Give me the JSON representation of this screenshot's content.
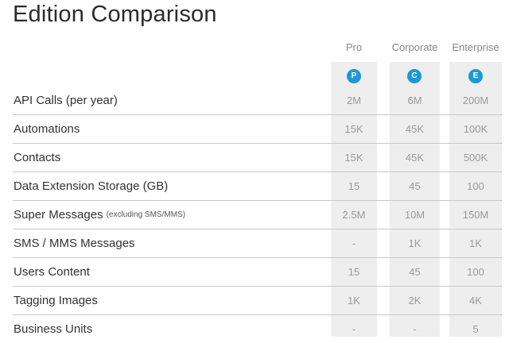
{
  "title": "Edition Comparison",
  "editions": [
    {
      "name": "Pro",
      "badge": "P"
    },
    {
      "name": "Corporate",
      "badge": "C"
    },
    {
      "name": "Enterprise",
      "badge": "E"
    }
  ],
  "badge_color": "#1a9ad6",
  "rows": [
    {
      "label": "API Calls (per year)",
      "note": "",
      "values": [
        "2M",
        "6M",
        "200M"
      ]
    },
    {
      "label": "Automations",
      "note": "",
      "values": [
        "15K",
        "45K",
        "100K"
      ]
    },
    {
      "label": "Contacts",
      "note": "",
      "values": [
        "15K",
        "45K",
        "500K"
      ]
    },
    {
      "label": "Data Extension Storage (GB)",
      "note": "",
      "values": [
        "15",
        "45",
        "100"
      ]
    },
    {
      "label": "Super Messages",
      "note": "(excluding SMS/MMS)",
      "values": [
        "2.5M",
        "10M",
        "150M"
      ]
    },
    {
      "label": "SMS / MMS Messages",
      "note": "",
      "values": [
        "-",
        "1K",
        "1K"
      ]
    },
    {
      "label": "Users Content",
      "note": "",
      "values": [
        "15",
        "45",
        "100"
      ]
    },
    {
      "label": "Tagging Images",
      "note": "",
      "values": [
        "1K",
        "2K",
        "4K"
      ]
    },
    {
      "label": "Business Units",
      "note": "",
      "values": [
        "-",
        "-",
        "5"
      ]
    }
  ]
}
